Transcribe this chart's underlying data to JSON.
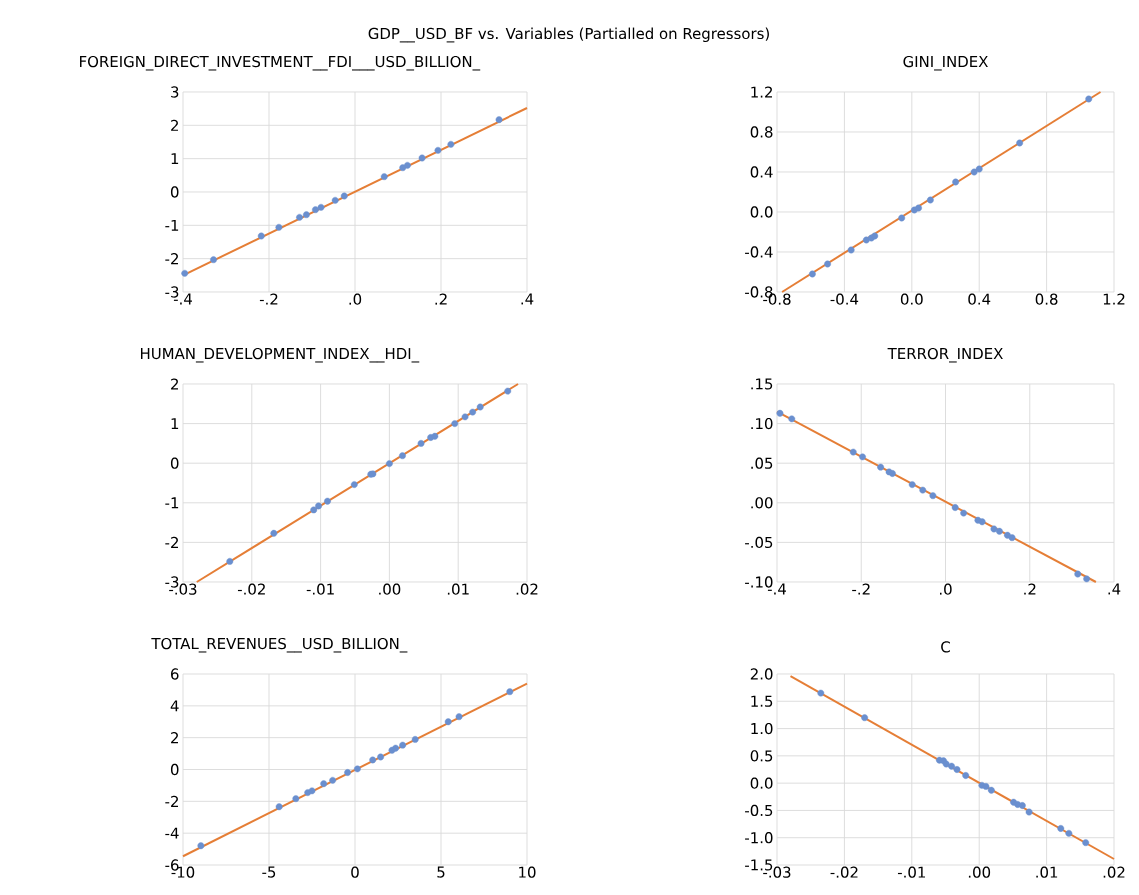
{
  "chart_data": [
    {
      "type": "other",
      "title": "GDP__USD_BF vs. Variables (Partialled on Regressors)"
    },
    {
      "type": "scatter",
      "title": "FOREIGN_DIRECT_INVESTMENT__FDI___USD_BILLION_",
      "grid": true,
      "line_style": "solid",
      "xlim": [
        -0.4,
        0.4
      ],
      "xticks": [
        {
          "value": -0.4,
          "label": "-.4"
        },
        {
          "value": -0.2,
          "label": "-.2"
        },
        {
          "value": 0,
          "label": ".0"
        },
        {
          "value": 0.2,
          "label": ".2"
        },
        {
          "value": 0.4,
          "label": ".4"
        }
      ],
      "ylim": [
        -3,
        3
      ],
      "yticks": [
        -3,
        -2,
        -1,
        0,
        1,
        2,
        3
      ],
      "series": [
        {
          "type": "scatter",
          "marker": "circle",
          "color": "#6a8fcf",
          "x": [
            -0.396,
            -0.329,
            -0.218,
            -0.177,
            -0.129,
            -0.113,
            -0.092,
            -0.079,
            -0.046,
            -0.025,
            0.068,
            0.111,
            0.122,
            0.156,
            0.193,
            0.223,
            0.335
          ],
          "values": [
            -2.44,
            -2.03,
            -1.32,
            -1.06,
            -0.76,
            -0.68,
            -0.53,
            -0.46,
            -0.25,
            -0.12,
            0.46,
            0.73,
            0.8,
            1.02,
            1.25,
            1.43,
            2.17
          ]
        },
        {
          "type": "line",
          "color": "#e57e36",
          "x": [
            -0.4,
            0.4
          ],
          "values": [
            -2.5,
            2.52
          ]
        }
      ]
    },
    {
      "type": "scatter",
      "title": "GINI_INDEX",
      "grid": true,
      "line_style": "solid",
      "xlim": [
        -0.8,
        1.2
      ],
      "xticks": [
        {
          "value": -0.8,
          "label": "-0.8"
        },
        {
          "value": -0.4,
          "label": "-0.4"
        },
        {
          "value": 0,
          "label": "0.0"
        },
        {
          "value": 0.4,
          "label": "0.4"
        },
        {
          "value": 0.8,
          "label": "0.8"
        },
        {
          "value": 1.2,
          "label": "1.2"
        }
      ],
      "ylim": [
        -0.8,
        1.2
      ],
      "yticks": [
        {
          "value": -0.8,
          "label": "-0.8"
        },
        {
          "value": -0.4,
          "label": "-0.4"
        },
        {
          "value": 0,
          "label": "0.0"
        },
        {
          "value": 0.4,
          "label": "0.4"
        },
        {
          "value": 0.8,
          "label": "0.8"
        },
        {
          "value": 1.2,
          "label": "1.2"
        }
      ],
      "series": [
        {
          "type": "scatter",
          "marker": "circle",
          "color": "#6a8fcf",
          "x": [
            -0.59,
            -0.5,
            -0.36,
            -0.27,
            -0.24,
            -0.22,
            -0.06,
            0.015,
            0.04,
            0.11,
            0.26,
            0.37,
            0.4,
            0.64,
            1.05
          ],
          "values": [
            -0.62,
            -0.52,
            -0.38,
            -0.28,
            -0.26,
            -0.24,
            -0.06,
            0.02,
            0.04,
            0.12,
            0.3,
            0.4,
            0.43,
            0.69,
            1.13
          ]
        },
        {
          "type": "line",
          "color": "#e57e36",
          "x": [
            -0.77,
            1.12
          ],
          "values": [
            -0.8,
            1.2
          ]
        }
      ]
    },
    {
      "type": "scatter",
      "title": "HUMAN_DEVELOPMENT_INDEX__HDI_",
      "grid": true,
      "line_style": "solid",
      "xlim": [
        -0.03,
        0.02
      ],
      "xticks": [
        {
          "value": -0.03,
          "label": "-.03"
        },
        {
          "value": -0.02,
          "label": "-.02"
        },
        {
          "value": -0.01,
          "label": "-.01"
        },
        {
          "value": 0,
          "label": ".00"
        },
        {
          "value": 0.01,
          "label": ".01"
        },
        {
          "value": 0.02,
          "label": ".02"
        }
      ],
      "ylim": [
        -3,
        2
      ],
      "yticks": [
        -3,
        -2,
        -1,
        0,
        1,
        2
      ],
      "series": [
        {
          "type": "scatter",
          "marker": "circle",
          "color": "#6a8fcf",
          "x": [
            -0.0232,
            -0.0168,
            -0.011,
            -0.0103,
            -0.009,
            -0.0051,
            -0.0027,
            -0.0024,
            0.0,
            0.0019,
            0.0046,
            0.006,
            0.0066,
            0.0095,
            0.011,
            0.0121,
            0.0132,
            0.0172
          ],
          "values": [
            -2.48,
            -1.77,
            -1.18,
            -1.08,
            -0.96,
            -0.54,
            -0.28,
            -0.27,
            -0.01,
            0.19,
            0.5,
            0.65,
            0.68,
            1.0,
            1.17,
            1.29,
            1.42,
            1.82
          ]
        },
        {
          "type": "line",
          "color": "#e57e36",
          "x": [
            -0.028,
            0.0187
          ],
          "values": [
            -3,
            2
          ]
        }
      ]
    },
    {
      "type": "scatter",
      "title": "TERROR_INDEX",
      "grid": true,
      "line_style": "solid",
      "xlim": [
        -0.4,
        0.4
      ],
      "xticks": [
        {
          "value": -0.4,
          "label": "-.4"
        },
        {
          "value": -0.2,
          "label": "-.2"
        },
        {
          "value": 0,
          "label": ".0"
        },
        {
          "value": 0.2,
          "label": ".2"
        },
        {
          "value": 0.4,
          "label": ".4"
        }
      ],
      "ylim": [
        -0.1,
        0.15
      ],
      "yticks": [
        {
          "value": -0.1,
          "label": "-.10"
        },
        {
          "value": -0.05,
          "label": "-.05"
        },
        {
          "value": 0,
          "label": ".00"
        },
        {
          "value": 0.05,
          "label": ".05"
        },
        {
          "value": 0.1,
          "label": ".10"
        },
        {
          "value": 0.15,
          "label": ".15"
        }
      ],
      "series": [
        {
          "type": "scatter",
          "marker": "circle",
          "color": "#6a8fcf",
          "x": [
            -0.393,
            -0.365,
            -0.219,
            -0.197,
            -0.154,
            -0.134,
            -0.126,
            -0.079,
            -0.054,
            -0.03,
            0.023,
            0.043,
            0.077,
            0.087,
            0.115,
            0.128,
            0.147,
            0.158,
            0.314,
            0.335
          ],
          "values": [
            0.113,
            0.106,
            0.064,
            0.058,
            0.045,
            0.039,
            0.037,
            0.023,
            0.016,
            0.009,
            -0.006,
            -0.013,
            -0.022,
            -0.024,
            -0.033,
            -0.036,
            -0.041,
            -0.044,
            -0.09,
            -0.096
          ]
        },
        {
          "type": "line",
          "color": "#e57e36",
          "x": [
            -0.4,
            0.357
          ],
          "values": [
            0.115,
            -0.1
          ]
        }
      ]
    },
    {
      "type": "scatter",
      "title": "TOTAL_REVENUES__USD_BILLION_",
      "grid": true,
      "line_style": "solid",
      "xlim": [
        -10,
        10
      ],
      "xticks": [
        -10,
        -5,
        0,
        5,
        10
      ],
      "ylim": [
        -6,
        6
      ],
      "yticks": [
        -6,
        -4,
        -2,
        0,
        2,
        4,
        6
      ],
      "series": [
        {
          "type": "scatter",
          "marker": "circle",
          "color": "#6a8fcf",
          "x": [
            -8.96,
            -4.41,
            -3.44,
            -2.75,
            -2.5,
            -1.82,
            -1.3,
            -0.43,
            0.14,
            1.03,
            1.49,
            2.15,
            2.36,
            2.77,
            3.5,
            5.42,
            6.05,
            9.0
          ],
          "values": [
            -4.79,
            -2.34,
            -1.83,
            -1.45,
            -1.34,
            -0.89,
            -0.68,
            -0.19,
            0.04,
            0.6,
            0.79,
            1.21,
            1.34,
            1.53,
            1.89,
            3.0,
            3.32,
            4.89
          ]
        },
        {
          "type": "line",
          "color": "#e57e36",
          "x": [
            -10,
            10
          ],
          "values": [
            -5.45,
            5.4
          ]
        }
      ]
    },
    {
      "type": "scatter",
      "title": "C",
      "grid": true,
      "line_style": "solid",
      "xlim": [
        -0.03,
        0.02
      ],
      "xticks": [
        {
          "value": -0.03,
          "label": "-.03"
        },
        {
          "value": -0.02,
          "label": "-.02"
        },
        {
          "value": -0.01,
          "label": "-.01"
        },
        {
          "value": 0,
          "label": ".00"
        },
        {
          "value": 0.01,
          "label": ".01"
        },
        {
          "value": 0.02,
          "label": ".02"
        }
      ],
      "ylim": [
        -1.5,
        2.0
      ],
      "yticks": [
        {
          "value": -1.5,
          "label": "-1.5"
        },
        {
          "value": -1.0,
          "label": "-1.0"
        },
        {
          "value": -0.5,
          "label": "-0.5"
        },
        {
          "value": 0,
          "label": "0.0"
        },
        {
          "value": 0.5,
          "label": "0.5"
        },
        {
          "value": 1.0,
          "label": "1.0"
        },
        {
          "value": 1.5,
          "label": "1.5"
        },
        {
          "value": 2.0,
          "label": "2.0"
        }
      ],
      "series": [
        {
          "type": "scatter",
          "marker": "circle",
          "color": "#6a8fcf",
          "x": [
            -0.0235,
            -0.017,
            -0.0059,
            -0.0053,
            -0.0049,
            -0.0041,
            -0.0033,
            -0.002,
            0.0004,
            0.001,
            0.0018,
            0.0051,
            0.0057,
            0.0064,
            0.0074,
            0.0121,
            0.0133,
            0.0158
          ],
          "values": [
            1.65,
            1.2,
            0.42,
            0.41,
            0.35,
            0.31,
            0.25,
            0.14,
            -0.04,
            -0.06,
            -0.13,
            -0.35,
            -0.39,
            -0.41,
            -0.53,
            -0.83,
            -0.92,
            -1.09
          ]
        },
        {
          "type": "line",
          "color": "#e57e36",
          "x": [
            -0.028,
            0.02
          ],
          "values": [
            1.96,
            -1.39
          ]
        }
      ]
    }
  ]
}
